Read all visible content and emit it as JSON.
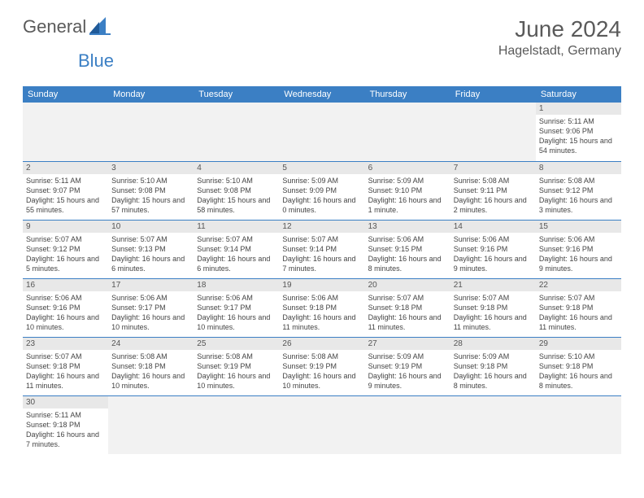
{
  "logo": {
    "part1": "General",
    "part2": "Blue"
  },
  "title": "June 2024",
  "location": "Hagelstadt, Germany",
  "colors": {
    "header_bg": "#3b7fc4",
    "header_text": "#ffffff",
    "daynum_bg": "#e8e8e8",
    "border": "#3b7fc4",
    "body_text": "#444444",
    "title_text": "#5a5a5a"
  },
  "weekdays": [
    "Sunday",
    "Monday",
    "Tuesday",
    "Wednesday",
    "Thursday",
    "Friday",
    "Saturday"
  ],
  "weeks": [
    [
      null,
      null,
      null,
      null,
      null,
      null,
      {
        "n": "1",
        "sunrise": "5:11 AM",
        "sunset": "9:06 PM",
        "daylight": "15 hours and 54 minutes."
      }
    ],
    [
      {
        "n": "2",
        "sunrise": "5:11 AM",
        "sunset": "9:07 PM",
        "daylight": "15 hours and 55 minutes."
      },
      {
        "n": "3",
        "sunrise": "5:10 AM",
        "sunset": "9:08 PM",
        "daylight": "15 hours and 57 minutes."
      },
      {
        "n": "4",
        "sunrise": "5:10 AM",
        "sunset": "9:08 PM",
        "daylight": "15 hours and 58 minutes."
      },
      {
        "n": "5",
        "sunrise": "5:09 AM",
        "sunset": "9:09 PM",
        "daylight": "16 hours and 0 minutes."
      },
      {
        "n": "6",
        "sunrise": "5:09 AM",
        "sunset": "9:10 PM",
        "daylight": "16 hours and 1 minute."
      },
      {
        "n": "7",
        "sunrise": "5:08 AM",
        "sunset": "9:11 PM",
        "daylight": "16 hours and 2 minutes."
      },
      {
        "n": "8",
        "sunrise": "5:08 AM",
        "sunset": "9:12 PM",
        "daylight": "16 hours and 3 minutes."
      }
    ],
    [
      {
        "n": "9",
        "sunrise": "5:07 AM",
        "sunset": "9:12 PM",
        "daylight": "16 hours and 5 minutes."
      },
      {
        "n": "10",
        "sunrise": "5:07 AM",
        "sunset": "9:13 PM",
        "daylight": "16 hours and 6 minutes."
      },
      {
        "n": "11",
        "sunrise": "5:07 AM",
        "sunset": "9:14 PM",
        "daylight": "16 hours and 6 minutes."
      },
      {
        "n": "12",
        "sunrise": "5:07 AM",
        "sunset": "9:14 PM",
        "daylight": "16 hours and 7 minutes."
      },
      {
        "n": "13",
        "sunrise": "5:06 AM",
        "sunset": "9:15 PM",
        "daylight": "16 hours and 8 minutes."
      },
      {
        "n": "14",
        "sunrise": "5:06 AM",
        "sunset": "9:16 PM",
        "daylight": "16 hours and 9 minutes."
      },
      {
        "n": "15",
        "sunrise": "5:06 AM",
        "sunset": "9:16 PM",
        "daylight": "16 hours and 9 minutes."
      }
    ],
    [
      {
        "n": "16",
        "sunrise": "5:06 AM",
        "sunset": "9:16 PM",
        "daylight": "16 hours and 10 minutes."
      },
      {
        "n": "17",
        "sunrise": "5:06 AM",
        "sunset": "9:17 PM",
        "daylight": "16 hours and 10 minutes."
      },
      {
        "n": "18",
        "sunrise": "5:06 AM",
        "sunset": "9:17 PM",
        "daylight": "16 hours and 10 minutes."
      },
      {
        "n": "19",
        "sunrise": "5:06 AM",
        "sunset": "9:18 PM",
        "daylight": "16 hours and 11 minutes."
      },
      {
        "n": "20",
        "sunrise": "5:07 AM",
        "sunset": "9:18 PM",
        "daylight": "16 hours and 11 minutes."
      },
      {
        "n": "21",
        "sunrise": "5:07 AM",
        "sunset": "9:18 PM",
        "daylight": "16 hours and 11 minutes."
      },
      {
        "n": "22",
        "sunrise": "5:07 AM",
        "sunset": "9:18 PM",
        "daylight": "16 hours and 11 minutes."
      }
    ],
    [
      {
        "n": "23",
        "sunrise": "5:07 AM",
        "sunset": "9:18 PM",
        "daylight": "16 hours and 11 minutes."
      },
      {
        "n": "24",
        "sunrise": "5:08 AM",
        "sunset": "9:18 PM",
        "daylight": "16 hours and 10 minutes."
      },
      {
        "n": "25",
        "sunrise": "5:08 AM",
        "sunset": "9:19 PM",
        "daylight": "16 hours and 10 minutes."
      },
      {
        "n": "26",
        "sunrise": "5:08 AM",
        "sunset": "9:19 PM",
        "daylight": "16 hours and 10 minutes."
      },
      {
        "n": "27",
        "sunrise": "5:09 AM",
        "sunset": "9:19 PM",
        "daylight": "16 hours and 9 minutes."
      },
      {
        "n": "28",
        "sunrise": "5:09 AM",
        "sunset": "9:18 PM",
        "daylight": "16 hours and 8 minutes."
      },
      {
        "n": "29",
        "sunrise": "5:10 AM",
        "sunset": "9:18 PM",
        "daylight": "16 hours and 8 minutes."
      }
    ],
    [
      {
        "n": "30",
        "sunrise": "5:11 AM",
        "sunset": "9:18 PM",
        "daylight": "16 hours and 7 minutes."
      },
      null,
      null,
      null,
      null,
      null,
      null
    ]
  ]
}
